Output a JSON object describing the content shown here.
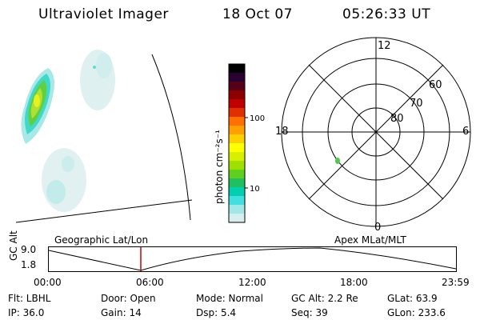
{
  "header": {
    "title": "Ultraviolet Imager",
    "date": "18 Oct 07",
    "time": "05:26:33 UT"
  },
  "colorbar": {
    "unit_label": "photon cm⁻²s⁻¹",
    "ticks": [
      "100",
      "10"
    ],
    "colors": [
      "#000000",
      "#2a0033",
      "#55001a",
      "#8b0000",
      "#c00000",
      "#e03000",
      "#ff7000",
      "#ffa000",
      "#ffd000",
      "#ffff00",
      "#d8f000",
      "#a0e000",
      "#60d020",
      "#20c060",
      "#00d0b0",
      "#40e0e0",
      "#a0e8e8",
      "#d8eeee"
    ]
  },
  "polar": {
    "mlt_labels": [
      "12",
      "18",
      "6",
      "0"
    ],
    "lat_labels": [
      "60",
      "70",
      "80"
    ]
  },
  "strip": {
    "y_axis_label": "GC Alt",
    "y_ticks": [
      "9.0",
      "1.8"
    ],
    "left_title": "Geographic Lat/Lon",
    "right_title": "Apex  MLat/MLT",
    "x_ticks": [
      "00:00",
      "06:00",
      "12:00",
      "18:00",
      "23:59"
    ],
    "marker_color": "#cc0000"
  },
  "info": {
    "row1": [
      "Flt:  LBHL",
      "Door:  Open",
      "Mode:  Normal",
      "GC Alt:  2.2 Re",
      "GLat:   63.9"
    ],
    "row2": [
      "IP:  36.0",
      "Gain:  14",
      "Dsp:      5.4",
      "Seq:  39",
      "GLon:  233.6"
    ]
  }
}
